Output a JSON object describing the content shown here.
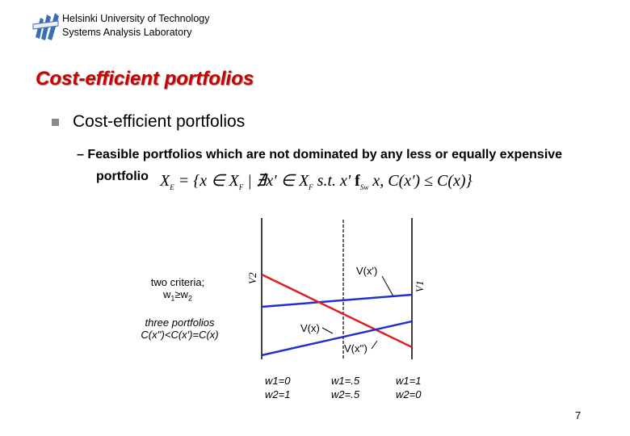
{
  "header": {
    "line1": "Helsinki University of Technology",
    "line2": "Systems Analysis Laboratory"
  },
  "slide": {
    "title": "Cost-efficient portfolios",
    "bullet": "Cost-efficient portfolios",
    "subbullet_line1": "– Feasible portfolios which are not dominated by any less or equally expensive",
    "subbullet_line2": "portfolio"
  },
  "formula": {
    "lhs": "X",
    "lhs_sub": "E",
    "eq": " = {x ∈ X",
    "sub_f1": "F",
    "mid": " | ∄x' ∈ X",
    "sub_f2": "F",
    "st": "  s.t.  x' ",
    "dom": "f",
    "dom_sub": "Sw",
    "tail": " x, C(x') ≤ C(x)}"
  },
  "figure": {
    "left_text1": "two criteria;",
    "left_text2": "w",
    "left_text2_sub1": "1",
    "left_text2_rel": "≥w",
    "left_text2_sub2": "2",
    "left_text3": "three portfolios",
    "left_text4": "C(x'')<C(x')=C(x)",
    "axis_left_label": "V2",
    "axis_right_label": "V1",
    "curve_labels": [
      "V(x')",
      "V(x)",
      "V(x'')"
    ],
    "weights": [
      {
        "w1": "w1=0",
        "w2": "w2=1"
      },
      {
        "w1": "w1=.5",
        "w2": "w2=.5"
      },
      {
        "w1": "w1=1",
        "w2": "w2=0"
      }
    ],
    "colors": {
      "red": "#e02020",
      "blue": "#1f2fd0"
    }
  },
  "page_number": "7"
}
